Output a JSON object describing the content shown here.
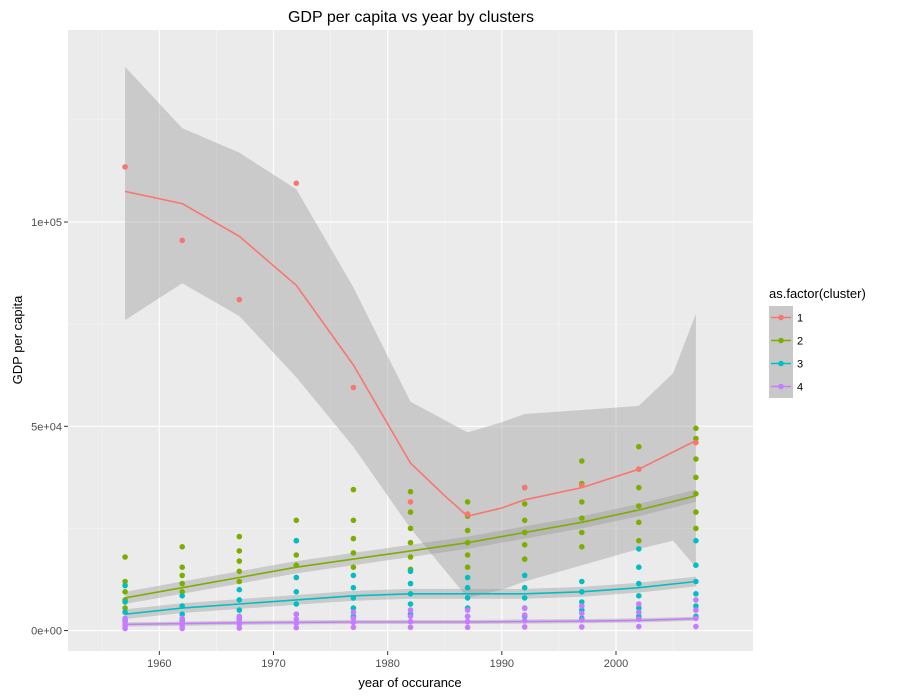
{
  "chart_data": {
    "type": "scatter",
    "title": "GDP per capita vs year by clusters",
    "xlabel": "year of occurance",
    "ylabel": "GDP per capita",
    "xlim": [
      1952,
      2012
    ],
    "ylim": [
      -5000,
      147000
    ],
    "x_ticks": [
      1960,
      1970,
      1980,
      1990,
      2000
    ],
    "y_ticks": [
      0,
      50000,
      100000
    ],
    "y_tick_labels": [
      "0e+00",
      "5e+04",
      "1e+05"
    ],
    "grid": true,
    "legend_title": "as.factor(cluster)",
    "legend_position": "right",
    "series": [
      {
        "name": "1",
        "color": "#F8766D",
        "points": [
          [
            1957,
            113500
          ],
          [
            1962,
            95500
          ],
          [
            1967,
            81000
          ],
          [
            1972,
            109500
          ],
          [
            1977,
            59500
          ],
          [
            1982,
            31500
          ],
          [
            1987,
            28500
          ],
          [
            1992,
            35000
          ],
          [
            1997,
            35500
          ],
          [
            2002,
            39500
          ],
          [
            2007,
            46000
          ]
        ],
        "smooth": [
          [
            1957,
            107500
          ],
          [
            1962,
            104500
          ],
          [
            1967,
            96500
          ],
          [
            1972,
            84500
          ],
          [
            1977,
            65000
          ],
          [
            1982,
            41000
          ],
          [
            1985,
            33000
          ],
          [
            1987,
            28000
          ],
          [
            1990,
            30000
          ],
          [
            1992,
            32000
          ],
          [
            1997,
            35000
          ],
          [
            2002,
            39500
          ],
          [
            2007,
            46500
          ]
        ],
        "band_upper": [
          [
            1957,
            138000
          ],
          [
            1962,
            123000
          ],
          [
            1967,
            117000
          ],
          [
            1972,
            108000
          ],
          [
            1977,
            84000
          ],
          [
            1982,
            56000
          ],
          [
            1987,
            48500
          ],
          [
            1990,
            51000
          ],
          [
            1992,
            53000
          ],
          [
            1997,
            54000
          ],
          [
            2002,
            55000
          ],
          [
            2005,
            63000
          ],
          [
            2007,
            77500
          ]
        ],
        "band_lower": [
          [
            1957,
            76000
          ],
          [
            1962,
            85000
          ],
          [
            1967,
            77000
          ],
          [
            1972,
            62000
          ],
          [
            1977,
            45000
          ],
          [
            1982,
            25000
          ],
          [
            1987,
            8000
          ],
          [
            1990,
            10000
          ],
          [
            1992,
            12000
          ],
          [
            1997,
            16000
          ],
          [
            2002,
            20000
          ],
          [
            2005,
            22000
          ],
          [
            2007,
            15500
          ]
        ]
      },
      {
        "name": "2",
        "color": "#7CAE00",
        "points": [
          [
            1957,
            18000
          ],
          [
            1957,
            12000
          ],
          [
            1957,
            9500
          ],
          [
            1957,
            7500
          ],
          [
            1957,
            5500
          ],
          [
            1962,
            20500
          ],
          [
            1962,
            15500
          ],
          [
            1962,
            13500
          ],
          [
            1962,
            11500
          ],
          [
            1962,
            9500
          ],
          [
            1967,
            23000
          ],
          [
            1967,
            19500
          ],
          [
            1967,
            17000
          ],
          [
            1967,
            14500
          ],
          [
            1967,
            12000
          ],
          [
            1972,
            27000
          ],
          [
            1972,
            22000
          ],
          [
            1972,
            18500
          ],
          [
            1972,
            16000
          ],
          [
            1972,
            13000
          ],
          [
            1977,
            34500
          ],
          [
            1977,
            27000
          ],
          [
            1977,
            22500
          ],
          [
            1977,
            19000
          ],
          [
            1977,
            15500
          ],
          [
            1982,
            34000
          ],
          [
            1982,
            29000
          ],
          [
            1982,
            25000
          ],
          [
            1982,
            21500
          ],
          [
            1982,
            18000
          ],
          [
            1982,
            15000
          ],
          [
            1987,
            31500
          ],
          [
            1987,
            28000
          ],
          [
            1987,
            24500
          ],
          [
            1987,
            21500
          ],
          [
            1987,
            18500
          ],
          [
            1987,
            15500
          ],
          [
            1992,
            35000
          ],
          [
            1992,
            31000
          ],
          [
            1992,
            27000
          ],
          [
            1992,
            24000
          ],
          [
            1992,
            21000
          ],
          [
            1992,
            17500
          ],
          [
            1997,
            41500
          ],
          [
            1997,
            36000
          ],
          [
            1997,
            31500
          ],
          [
            1997,
            27500
          ],
          [
            1997,
            24000
          ],
          [
            1997,
            20500
          ],
          [
            2002,
            45000
          ],
          [
            2002,
            39500
          ],
          [
            2002,
            35000
          ],
          [
            2002,
            30500
          ],
          [
            2002,
            26500
          ],
          [
            2002,
            22000
          ],
          [
            2007,
            49500
          ],
          [
            2007,
            47000
          ],
          [
            2007,
            42000
          ],
          [
            2007,
            37500
          ],
          [
            2007,
            33500
          ],
          [
            2007,
            29000
          ],
          [
            2007,
            25000
          ]
        ],
        "smooth": [
          [
            1957,
            8000
          ],
          [
            1962,
            10500
          ],
          [
            1967,
            13000
          ],
          [
            1972,
            15500
          ],
          [
            1977,
            17500
          ],
          [
            1982,
            19500
          ],
          [
            1987,
            21500
          ],
          [
            1992,
            24000
          ],
          [
            1997,
            26500
          ],
          [
            2002,
            29500
          ],
          [
            2007,
            33000
          ]
        ],
        "band": 1500
      },
      {
        "name": "3",
        "color": "#00BFC4",
        "points": [
          [
            1957,
            11000
          ],
          [
            1957,
            7000
          ],
          [
            1957,
            4500
          ],
          [
            1957,
            2500
          ],
          [
            1962,
            8500
          ],
          [
            1962,
            6000
          ],
          [
            1962,
            4000
          ],
          [
            1962,
            2500
          ],
          [
            1967,
            10000
          ],
          [
            1967,
            7500
          ],
          [
            1967,
            5000
          ],
          [
            1967,
            3000
          ],
          [
            1972,
            22000
          ],
          [
            1972,
            13000
          ],
          [
            1972,
            9500
          ],
          [
            1972,
            6500
          ],
          [
            1972,
            4000
          ],
          [
            1977,
            13500
          ],
          [
            1977,
            10500
          ],
          [
            1977,
            8000
          ],
          [
            1977,
            5500
          ],
          [
            1977,
            3500
          ],
          [
            1982,
            14500
          ],
          [
            1982,
            11500
          ],
          [
            1982,
            9000
          ],
          [
            1982,
            6500
          ],
          [
            1982,
            4000
          ],
          [
            1987,
            13000
          ],
          [
            1987,
            10500
          ],
          [
            1987,
            8000
          ],
          [
            1987,
            5500
          ],
          [
            1987,
            3500
          ],
          [
            1992,
            13500
          ],
          [
            1992,
            10500
          ],
          [
            1992,
            8000
          ],
          [
            1992,
            5500
          ],
          [
            1992,
            3500
          ],
          [
            1997,
            12000
          ],
          [
            1997,
            9500
          ],
          [
            1997,
            7000
          ],
          [
            1997,
            5000
          ],
          [
            1997,
            3000
          ],
          [
            2002,
            20000
          ],
          [
            2002,
            15500
          ],
          [
            2002,
            11500
          ],
          [
            2002,
            8500
          ],
          [
            2002,
            5500
          ],
          [
            2002,
            3500
          ],
          [
            2007,
            22000
          ],
          [
            2007,
            16000
          ],
          [
            2007,
            12000
          ],
          [
            2007,
            9000
          ],
          [
            2007,
            6000
          ],
          [
            2007,
            3500
          ]
        ],
        "smooth": [
          [
            1957,
            4000
          ],
          [
            1962,
            5500
          ],
          [
            1967,
            6500
          ],
          [
            1972,
            7500
          ],
          [
            1977,
            8500
          ],
          [
            1982,
            9000
          ],
          [
            1987,
            9000
          ],
          [
            1992,
            9000
          ],
          [
            1997,
            9500
          ],
          [
            2002,
            10500
          ],
          [
            2007,
            12000
          ]
        ],
        "band": 1200
      },
      {
        "name": "4",
        "color": "#C77CFF",
        "points": [
          [
            1957,
            3000
          ],
          [
            1957,
            2000
          ],
          [
            1957,
            1200
          ],
          [
            1957,
            500
          ],
          [
            1962,
            3000
          ],
          [
            1962,
            2000
          ],
          [
            1962,
            1200
          ],
          [
            1962,
            500
          ],
          [
            1967,
            3500
          ],
          [
            1967,
            2500
          ],
          [
            1967,
            1500
          ],
          [
            1967,
            600
          ],
          [
            1972,
            4000
          ],
          [
            1972,
            2800
          ],
          [
            1972,
            1800
          ],
          [
            1972,
            700
          ],
          [
            1977,
            4500
          ],
          [
            1977,
            3000
          ],
          [
            1977,
            2000
          ],
          [
            1977,
            800
          ],
          [
            1982,
            5000
          ],
          [
            1982,
            3500
          ],
          [
            1982,
            2200
          ],
          [
            1982,
            800
          ],
          [
            1987,
            5000
          ],
          [
            1987,
            3500
          ],
          [
            1987,
            2200
          ],
          [
            1987,
            800
          ],
          [
            1992,
            5500
          ],
          [
            1992,
            3800
          ],
          [
            1992,
            2400
          ],
          [
            1992,
            900
          ],
          [
            1997,
            6000
          ],
          [
            1997,
            4200
          ],
          [
            1997,
            2600
          ],
          [
            1997,
            900
          ],
          [
            2002,
            6500
          ],
          [
            2002,
            4500
          ],
          [
            2002,
            2800
          ],
          [
            2002,
            1000
          ],
          [
            2007,
            7500
          ],
          [
            2007,
            5000
          ],
          [
            2007,
            3000
          ],
          [
            2007,
            1000
          ]
        ],
        "smooth": [
          [
            1957,
            1500
          ],
          [
            1962,
            1700
          ],
          [
            1967,
            1900
          ],
          [
            1972,
            2000
          ],
          [
            1977,
            2100
          ],
          [
            1982,
            2100
          ],
          [
            1987,
            2100
          ],
          [
            1992,
            2200
          ],
          [
            1997,
            2300
          ],
          [
            2002,
            2500
          ],
          [
            2007,
            2900
          ]
        ],
        "band": 500
      }
    ]
  }
}
